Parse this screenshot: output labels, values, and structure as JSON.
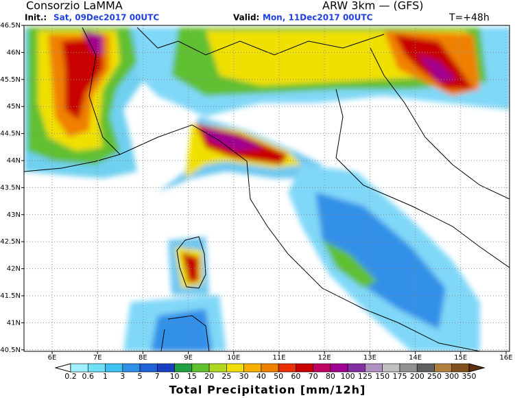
{
  "header": {
    "left_title": "Consorzio LaMMA",
    "right_title": "ARW 3km  —  (GFS)",
    "init_label": "Init.:",
    "init_value": "Sat, 09Dec2017 00UTC",
    "valid_label": "Valid:",
    "valid_value": "Mon, 11Dec2017 00UTC",
    "lead_time": "T=+48h"
  },
  "map": {
    "lon_labels": [
      "6E",
      "7E",
      "8E",
      "9E",
      "10E",
      "11E",
      "12E",
      "13E",
      "14E",
      "15E",
      "16E"
    ],
    "lat_labels": [
      "46.5N",
      "46N",
      "45.5N",
      "45N",
      "44.5N",
      "44N",
      "43.5N",
      "43N",
      "42.5N",
      "42N",
      "41.5N",
      "41N",
      "40.5N"
    ]
  },
  "colorbar": {
    "labels": [
      "0.2",
      "0.6",
      "1",
      "3",
      "5",
      "7",
      "10",
      "15",
      "20",
      "25",
      "30",
      "40",
      "50",
      "60",
      "70",
      "80",
      "100",
      "125",
      "150",
      "175",
      "200",
      "250",
      "300",
      "350"
    ],
    "colors": [
      "#a0f0ff",
      "#70e0f8",
      "#40c0f0",
      "#3090e8",
      "#2060d8",
      "#1840c0",
      "#20a040",
      "#60c030",
      "#b0d820",
      "#f0e000",
      "#f8b000",
      "#f08000",
      "#e83000",
      "#c80000",
      "#c00060",
      "#a00090",
      "#8030a0",
      "#b090c0",
      "#c0c0c0",
      "#909090",
      "#606060",
      "#b08040",
      "#805020"
    ],
    "title": "Total Precipitation [mm/12h]"
  }
}
